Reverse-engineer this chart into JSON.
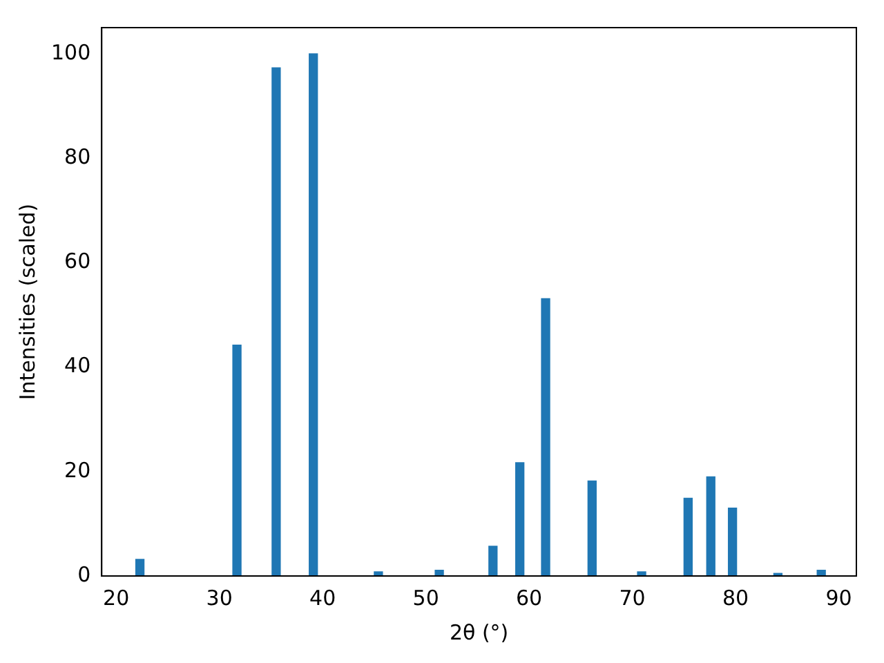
{
  "chart_data": {
    "type": "bar",
    "xlabel": "2θ (°)",
    "ylabel": "Intensities (scaled)",
    "x": [
      22.3,
      31.7,
      35.5,
      39.1,
      45.4,
      51.3,
      56.5,
      59.1,
      61.6,
      66.1,
      70.9,
      75.4,
      77.6,
      79.7,
      84.1,
      88.3
    ],
    "series": [
      {
        "color": "#1f77b4",
        "values": [
          3.2,
          44.2,
          97.3,
          100,
          0.8,
          1.1,
          5.7,
          21.7,
          53.1,
          18.2,
          0.8,
          14.9,
          19.0,
          13.0,
          0.5,
          1.1
        ]
      }
    ],
    "xlim": [
      18.6,
      91.7
    ],
    "xticks": [
      20,
      30,
      40,
      50,
      60,
      70,
      80,
      90
    ],
    "ylim": [
      0,
      105
    ],
    "yticks": [
      0,
      20,
      40,
      60,
      80,
      100
    ],
    "grid": false,
    "legend": false
  }
}
